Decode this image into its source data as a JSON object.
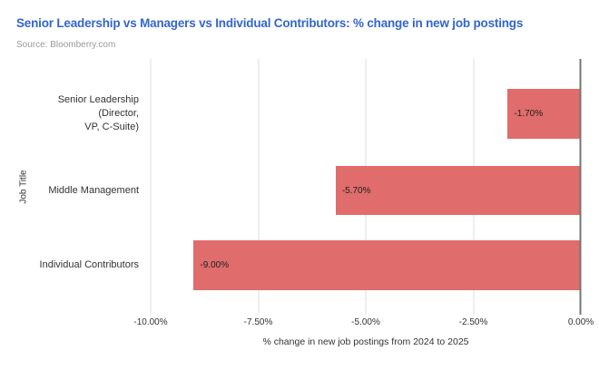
{
  "header": {
    "source": "Source: Bloomberry.com",
    "title_color": "#3366cc",
    "source_color": "#9a9a9a"
  },
  "chart_data": {
    "type": "bar",
    "orientation": "horizontal",
    "title": "Senior Leadership vs Managers vs Individual Contributors: % change in new job postings",
    "categories": [
      "Senior Leadership (Director, VP, C-Suite)",
      "Middle Management",
      "Individual Contributors"
    ],
    "category_labels": [
      "Senior Leadership (Director,\nVP, C-Suite)",
      "Middle Management",
      "Individual Contributors"
    ],
    "values": [
      -1.7,
      -5.7,
      -9.0
    ],
    "data_labels": [
      "-1.70%",
      "-5.70%",
      "-9.00%"
    ],
    "xlabel": "% change in new job postings from 2024 to 2025",
    "ylabel": "Job Title",
    "xlim": [
      -10,
      0
    ],
    "x_ticks": [
      "-10.00%",
      "-7.50%",
      "-5.00%",
      "-2.50%",
      "0.00%"
    ],
    "bar_color": "#e06c6c",
    "grid_color": "#dcdcdc",
    "zero_line_color": "#757575",
    "legend": "none",
    "grid": true
  }
}
